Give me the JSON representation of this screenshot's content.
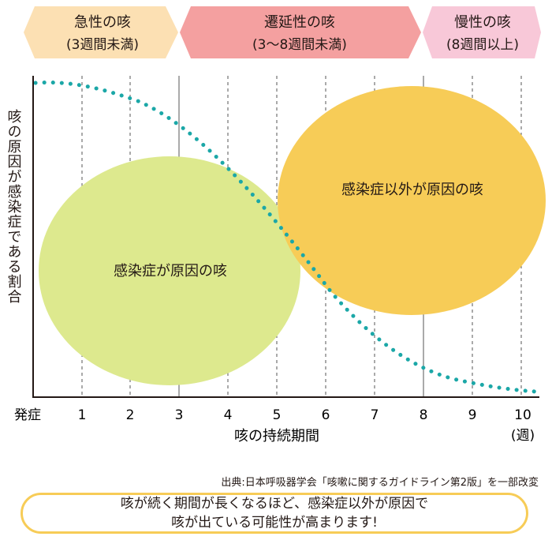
{
  "phases": [
    {
      "title": "急性の咳",
      "sub": "(3週間未満)"
    },
    {
      "title": "遷延性の咳",
      "sub": "(3〜8週間未満)"
    },
    {
      "title": "慢性の咳",
      "sub": "(8週間以上)"
    }
  ],
  "y_axis_label": "咳の原因が感染症である割合",
  "x_axis_label": "咳の持続期間",
  "x_unit": "(週)",
  "x_ticks": [
    "発症",
    "1",
    "2",
    "3",
    "4",
    "5",
    "6",
    "7",
    "8",
    "9",
    "10"
  ],
  "ovals": {
    "infection": "感染症が原因の咳",
    "non_infection": "感染症以外が原因の咳"
  },
  "source": "出典:日本呼吸器学会「咳嗽に関するガイドライン第2版」を一部改変",
  "summary": {
    "line1": "咳が続く期間が長くなるほど、感染症以外が原因で",
    "line2": "咳が出ている可能性が高まります!"
  },
  "colors": {
    "acute": "#fce0b3",
    "prolonged": "#f4a0a0",
    "chronic": "#f8c8d8",
    "infection_oval": "#dde98e",
    "non_infection_oval": "#f7cc57",
    "curve": "#1ba7a7"
  }
}
